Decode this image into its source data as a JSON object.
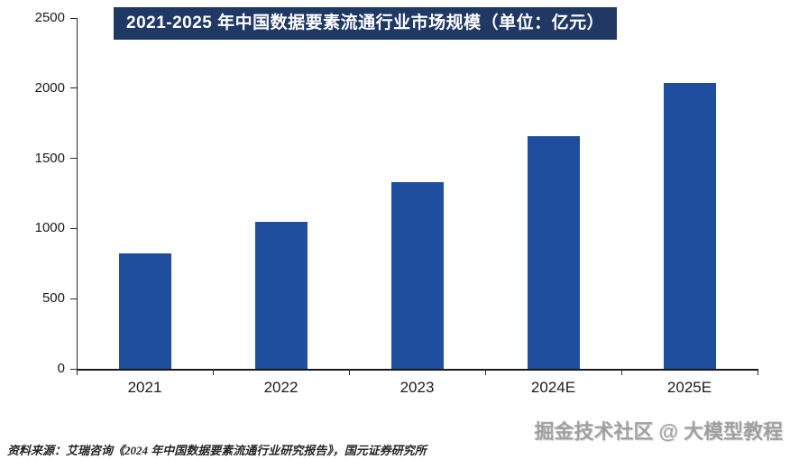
{
  "chart_data": {
    "type": "bar",
    "title": "2021-2025 年中国数据要素流通行业市场规模（单位：亿元）",
    "categories": [
      "2021",
      "2022",
      "2023",
      "2024E",
      "2025E"
    ],
    "values": [
      820,
      1050,
      1330,
      1660,
      2040
    ],
    "xlabel": "",
    "ylabel": "",
    "ylim": [
      0,
      2500
    ],
    "yticks": [
      0,
      500,
      1000,
      1500,
      2000,
      2500
    ],
    "grid": false,
    "legend": false,
    "bar_color": "#1F4E9E"
  },
  "colors": {
    "title_bg": "#1F3864",
    "bar": "#1F4E9E",
    "axis": "#262626"
  },
  "source": "资料来源：艾瑞咨询《2024 年中国数据要素流通行业研究报告》，国元证券研究所",
  "watermark": "掘金技术社区 @ 大模型教程"
}
